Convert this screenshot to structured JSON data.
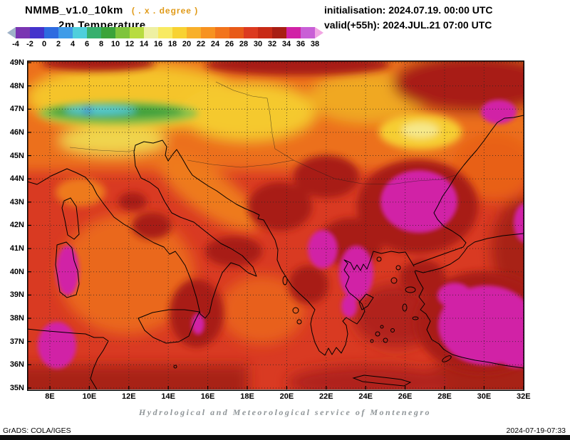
{
  "header": {
    "model": "NMMB_v1.0_10km",
    "degree_note": "( . x . degree )",
    "variable": "2m Temperature",
    "initialisation": "initialisation: 2024.07.19. 00:00 UTC",
    "valid": "valid(+55h): 2024.JUL.21 07:00 UTC"
  },
  "colorbar": {
    "tick_labels": [
      "-4",
      "-2",
      "0",
      "2",
      "4",
      "6",
      "8",
      "10",
      "12",
      "14",
      "16",
      "18",
      "20",
      "22",
      "24",
      "26",
      "28",
      "30",
      "32",
      "34",
      "36",
      "38"
    ],
    "segment_colors": [
      "#7a35b2",
      "#4433cc",
      "#2e6be0",
      "#3f9ce8",
      "#4fcfdc",
      "#37b06e",
      "#3ba33a",
      "#7ec43c",
      "#b8dc40",
      "#eef0a2",
      "#f8ea62",
      "#f8d232",
      "#f8b02a",
      "#f79220",
      "#f2741c",
      "#e85a18",
      "#dc3a20",
      "#c82a16",
      "#a81e14",
      "#d122a6",
      "#c95fd6"
    ],
    "arrow_left_color": "#9fb2c8",
    "arrow_right_color": "#f2a6e4"
  },
  "map": {
    "lat_labels": [
      "49N",
      "48N",
      "47N",
      "46N",
      "45N",
      "44N",
      "43N",
      "42N",
      "41N",
      "40N",
      "39N",
      "38N",
      "37N",
      "36N",
      "35N"
    ],
    "lon_labels": [
      "8E",
      "10E",
      "12E",
      "14E",
      "16E",
      "18E",
      "20E",
      "22E",
      "24E",
      "26E",
      "28E",
      "30E",
      "32E"
    ],
    "field_colors": {
      "base_red": "#d93a22",
      "dark_red": "#a81e14",
      "magenta": "#d122a6",
      "orange": "#ec701c",
      "yellow": "#f5c42c",
      "alps_green": "#3fa23c",
      "alps_cyan": "#55ccd8"
    }
  },
  "footer": {
    "credit": "Hydrological and Meteorological service of Montenegro",
    "grads": "GrADS: COLA/IGES",
    "timestamp": "2024-07-19-07:33"
  }
}
